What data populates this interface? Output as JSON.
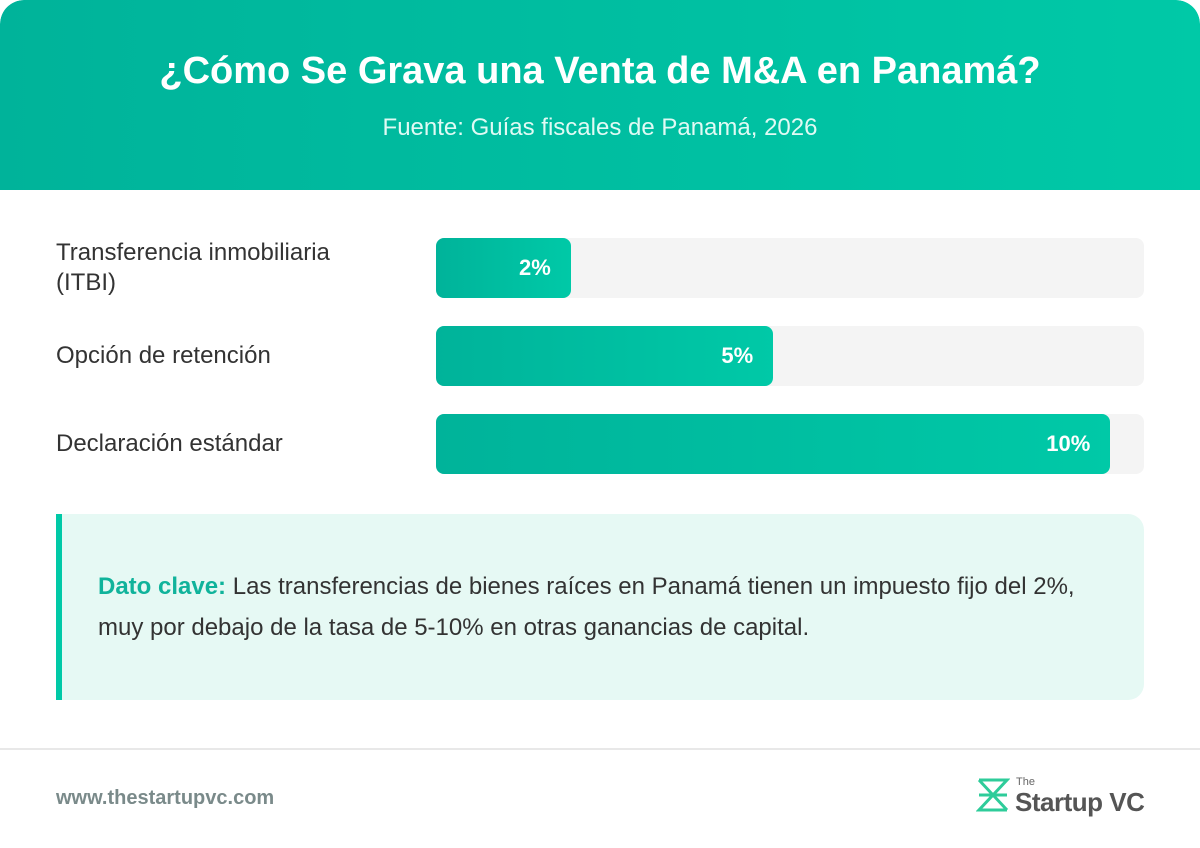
{
  "chart_data": {
    "type": "bar",
    "orientation": "horizontal",
    "title": "¿Cómo Se Grava una Venta de M&A en Panamá?",
    "subtitle": "Fuente: Guías fiscales de Panamá, 2026",
    "categories": [
      "Transferencia inmobiliaria (ITBI)",
      "Opción de retención",
      "Declaración estándar"
    ],
    "values": [
      2,
      5,
      10
    ],
    "value_labels": [
      "2%",
      "5%",
      "10%"
    ],
    "color": "#00c9a7",
    "xlim": [
      0,
      10.5
    ]
  },
  "note": {
    "label": "Dato clave:",
    "text": "Las transferencias de bienes raíces en Panamá tienen un impuesto fijo del 2%, muy por debajo de la tasa de 5-10% en otras ganancias de capital."
  },
  "footer": {
    "url": "www.thestartupvc.com",
    "logo_small": "The",
    "logo": "Startup VC"
  }
}
